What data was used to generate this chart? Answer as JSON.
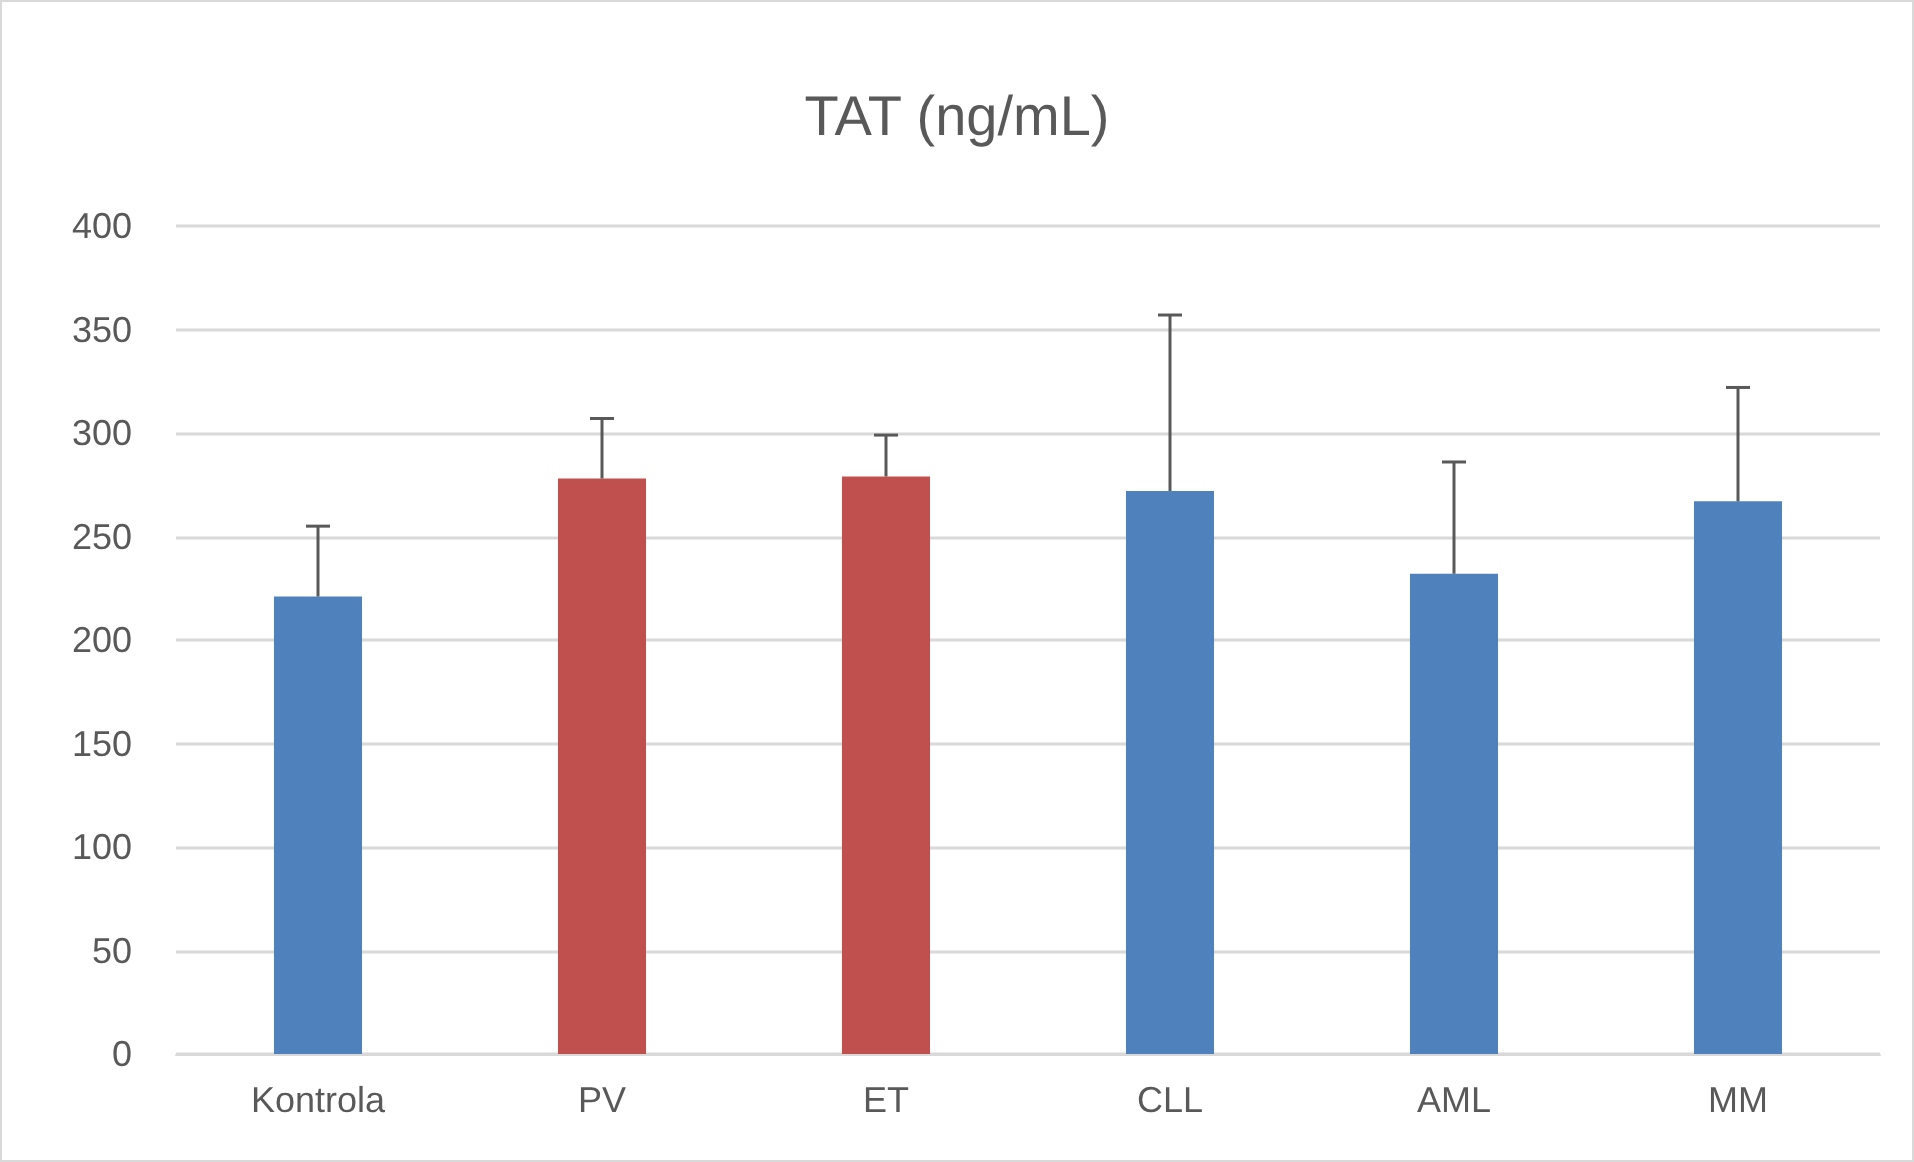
{
  "chart_data": {
    "type": "bar",
    "title": "TAT (ng/mL)",
    "categories": [
      "Kontrola",
      "PV",
      "ET",
      "CLL",
      "AML",
      "MM"
    ],
    "values": [
      221,
      278,
      279,
      272,
      232,
      267
    ],
    "colors": [
      "#4f81bd",
      "#c0504d",
      "#c0504d",
      "#4f81bd",
      "#4f81bd",
      "#4f81bd"
    ],
    "errors": [
      [
        221,
        255
      ],
      [
        278,
        307
      ],
      [
        279,
        299
      ],
      [
        272,
        357
      ],
      [
        232,
        286
      ],
      [
        267,
        322
      ]
    ],
    "ylim": [
      0,
      400
    ],
    "yticks": [
      0,
      50,
      100,
      150,
      200,
      250,
      300,
      350,
      400
    ],
    "grid": "y"
  }
}
